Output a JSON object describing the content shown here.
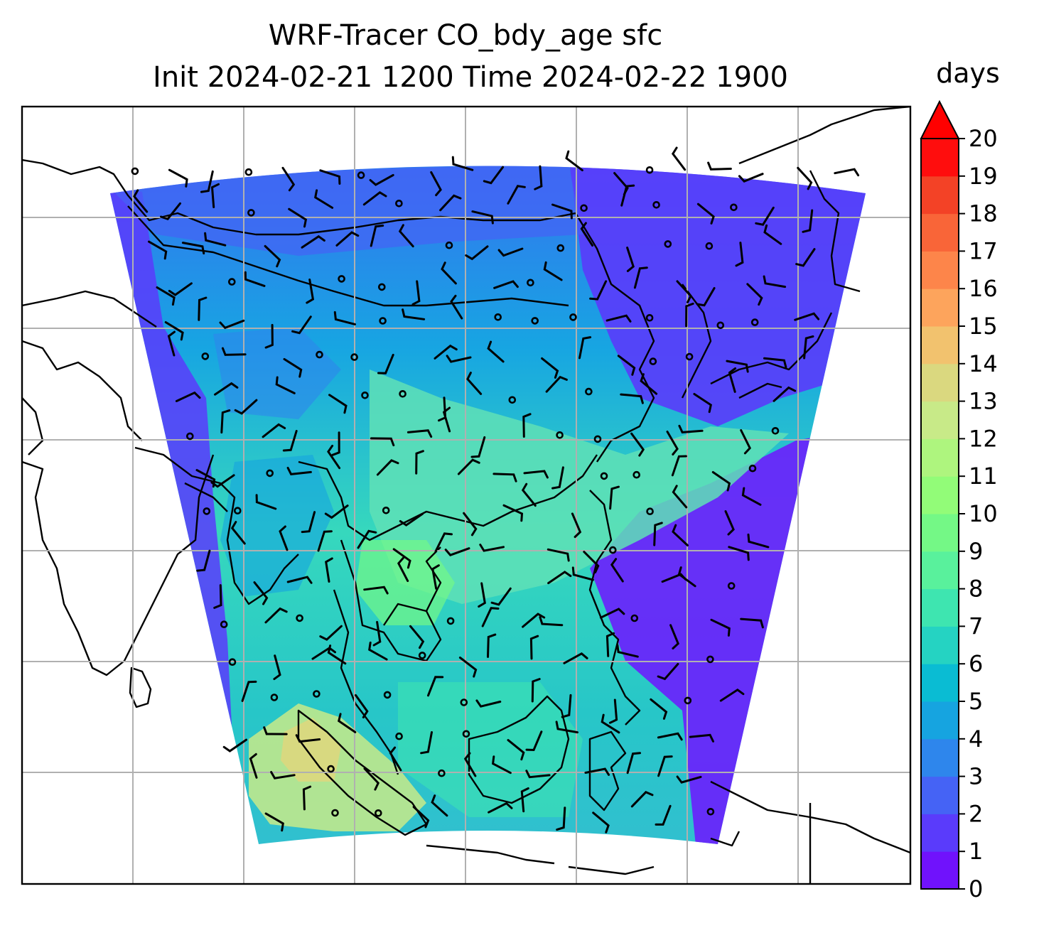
{
  "figure": {
    "title_line1": "WRF-Tracer CO_bdy_age sfc",
    "title_line2": "Init 2024-02-21 1200 Time 2024-02-22 1900"
  },
  "colorbar": {
    "units": "days",
    "extend": "max",
    "min": 0,
    "max": 20,
    "tick_labels": [
      "0",
      "1",
      "2",
      "3",
      "4",
      "5",
      "6",
      "7",
      "8",
      "9",
      "10",
      "11",
      "12",
      "13",
      "14",
      "15",
      "16",
      "17",
      "18",
      "19",
      "20"
    ],
    "level_colors": [
      "#7012fc",
      "#5a3bfb",
      "#4563f5",
      "#2e86ec",
      "#16a4e0",
      "#0abcd3",
      "#25d3c2",
      "#3ee5b0",
      "#59f19c",
      "#74f886",
      "#92fc78",
      "#aef57e",
      "#c8ea88",
      "#dad87f",
      "#f2c26e",
      "#fda45c",
      "#fd854a",
      "#f96538",
      "#f34226",
      "#ff0d0d"
    ],
    "extend_color": "#ff0000"
  },
  "map": {
    "gridlines": true,
    "domain_field_colors": {
      "low_age": "#6a2cfb",
      "mid_age": "#1ba0e6",
      "mid_high_age": "#5fe0b6",
      "high_age": "#cfe186"
    },
    "wind_barb_color": "#000000",
    "coastline_color": "#000000"
  }
}
